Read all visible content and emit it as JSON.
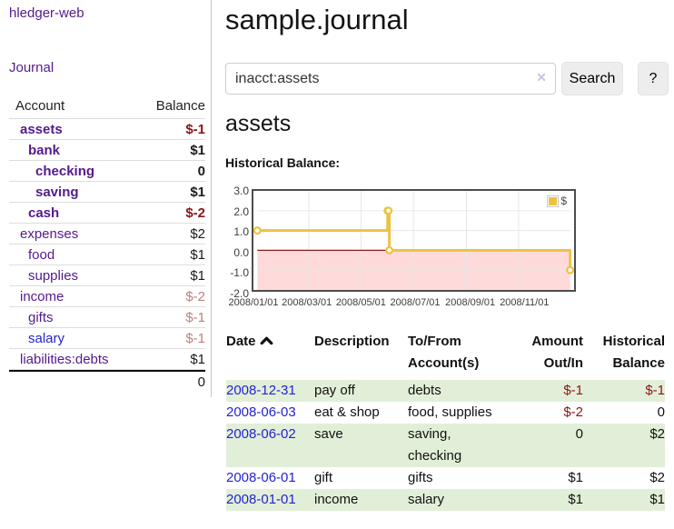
{
  "app": {
    "title": "hledger-web",
    "nav_journal_label": "Journal"
  },
  "sidebar": {
    "account_header": "Account",
    "balance_header": "Balance",
    "accounts": [
      {
        "name": "assets",
        "balance": "$-1"
      },
      {
        "name": "bank",
        "balance": "$1"
      },
      {
        "name": "checking",
        "balance": "0"
      },
      {
        "name": "saving",
        "balance": "$1"
      },
      {
        "name": "cash",
        "balance": "$-2"
      },
      {
        "name": "expenses",
        "balance": "$2"
      },
      {
        "name": "food",
        "balance": "$1"
      },
      {
        "name": "supplies",
        "balance": "$1"
      },
      {
        "name": "income",
        "balance": "$-2"
      },
      {
        "name": "gifts",
        "balance": "$-1"
      },
      {
        "name": "salary",
        "balance": "$-1"
      },
      {
        "name": "liabilities:debts",
        "balance": "$1"
      }
    ],
    "total": "0"
  },
  "header": {
    "title": "sample.journal"
  },
  "search": {
    "value": "inacct:assets",
    "clear_icon": "✕",
    "button_label": "Search",
    "help_label": "?"
  },
  "account_page": {
    "heading": "assets",
    "chart_title": "Historical Balance:"
  },
  "chart_data": {
    "type": "line",
    "title": "Historical Balance:",
    "x_range": [
      "2008-01-01",
      "2008-12-31"
    ],
    "ylim": [
      -2,
      3
    ],
    "y_ticks": [
      "3.0",
      "2.0",
      "1.0",
      "0.0",
      "-1.0",
      "-2.0"
    ],
    "y_gridlines": [
      2,
      1,
      0,
      -1
    ],
    "x_ticks": [
      {
        "label": "2008/01/01",
        "date": "2008-01-01"
      },
      {
        "label": "2008/03/01",
        "date": "2008-03-01"
      },
      {
        "label": "2008/05/01",
        "date": "2008-05-01"
      },
      {
        "label": "2008/07/01",
        "date": "2008-07-01"
      },
      {
        "label": "2008/09/01",
        "date": "2008-09-01"
      },
      {
        "label": "2008/11/01",
        "date": "2008-11-01"
      }
    ],
    "series": [
      {
        "name": "$",
        "color": "#edc240",
        "step": true,
        "points": [
          {
            "date": "2008-01-01",
            "value": 1
          },
          {
            "date": "2008-06-01",
            "value": 2
          },
          {
            "date": "2008-06-02",
            "value": 2
          },
          {
            "date": "2008-06-03",
            "value": 0
          },
          {
            "date": "2008-12-31",
            "value": -1
          }
        ]
      }
    ],
    "negative_region_color": "#ff8c8c",
    "zero_line_color": "#8b1a1a",
    "grid_color": "#e6e6e6",
    "legend_position": "top-right"
  },
  "register": {
    "headers": {
      "date": "Date",
      "description": "Description",
      "accounts": "To/From Account(s)",
      "amount": "Amount Out/In",
      "balance": "Historical Balance"
    },
    "rows": [
      {
        "date": "2008-12-31",
        "description": "pay off",
        "accounts": "debts",
        "amount": "$-1",
        "balance": "$-1"
      },
      {
        "date": "2008-06-03",
        "description": "eat & shop",
        "accounts": "food, supplies",
        "amount": "$-2",
        "balance": "0"
      },
      {
        "date": "2008-06-02",
        "description": "save",
        "accounts": "saving, checking",
        "amount": "0",
        "balance": "$2"
      },
      {
        "date": "2008-06-01",
        "description": "gift",
        "accounts": "gifts",
        "amount": "$1",
        "balance": "$2"
      },
      {
        "date": "2008-01-01",
        "description": "income",
        "accounts": "salary",
        "amount": "$1",
        "balance": "$1"
      }
    ]
  },
  "colors": {
    "link_purple": "#551a8b",
    "link_blue": "#2323d3",
    "negative_strong": "#8b1515",
    "negative_soft": "#bf7f7f",
    "row_shade_green": "#e2efd8",
    "series_gold": "#edc240"
  }
}
